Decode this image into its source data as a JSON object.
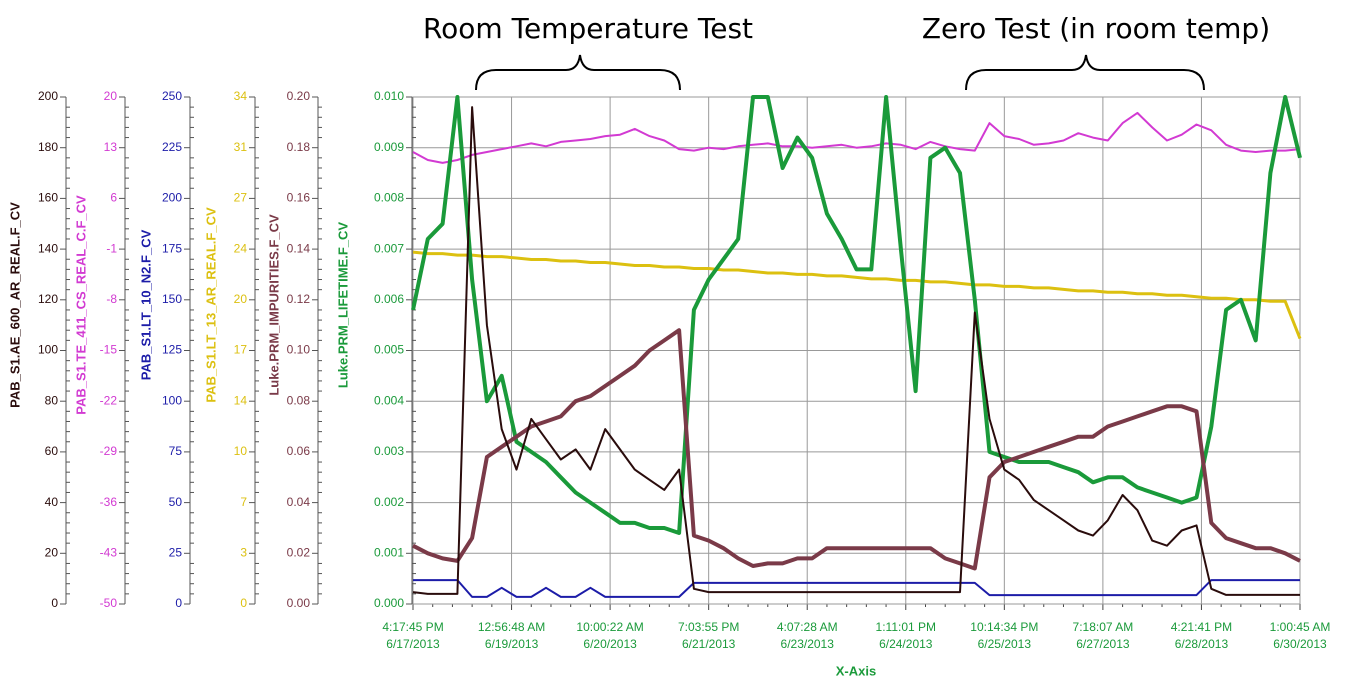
{
  "chart_data": {
    "type": "line",
    "annotations": [
      "Room Temperature Test",
      "Zero Test (in room temp)"
    ],
    "x_label": "X-Axis",
    "grid": true,
    "xticks": [
      [
        "4:17:45 PM",
        "6/17/2013"
      ],
      [
        "12:56:48 AM",
        "6/19/2013"
      ],
      [
        "10:00:22 AM",
        "6/20/2013"
      ],
      [
        "7:03:55 PM",
        "6/21/2013"
      ],
      [
        "4:07:28 AM",
        "6/23/2013"
      ],
      [
        "1:11:01 PM",
        "6/24/2013"
      ],
      [
        "10:14:34 PM",
        "6/25/2013"
      ],
      [
        "7:18:07 AM",
        "6/27/2013"
      ],
      [
        "4:21:41 PM",
        "6/28/2013"
      ],
      [
        "1:00:45 AM",
        "6/30/2013"
      ]
    ],
    "yaxes": [
      {
        "label": "PAB_S1.AE_600_AR_REAL.F_CV",
        "color": "#2a0c0c",
        "ylim": [
          0,
          200
        ],
        "yticks": [
          0,
          20,
          40,
          60,
          80,
          100,
          120,
          140,
          160,
          180,
          200
        ]
      },
      {
        "label": "PAB_S1.TE_411_CS_REAL_C.F_CV",
        "color": "#d23ad2",
        "ylim": [
          -50,
          20
        ],
        "yticks": [
          -50,
          -43,
          -36,
          -29,
          -22,
          -15,
          -8,
          -1,
          6,
          13,
          20
        ]
      },
      {
        "label": "PAB_S1.LT_10_N2.F_CV",
        "color": "#1c1ca8",
        "ylim": [
          0,
          250
        ],
        "yticks": [
          0,
          25,
          50,
          75,
          100,
          125,
          150,
          175,
          200,
          225,
          250
        ]
      },
      {
        "label": "PAB_S1.LT_13_AR_REAL.F_CV",
        "color": "#dcc010",
        "ylim": [
          0,
          34
        ],
        "yticks": [
          0,
          {
            "value": 3.4,
            "label": "3"
          },
          {
            "value": 6.8,
            "label": "7"
          },
          {
            "value": 10.2,
            "label": "10"
          },
          {
            "value": 13.6,
            "label": "14"
          },
          17,
          {
            "value": 20.4,
            "label": "20"
          },
          {
            "value": 23.8,
            "label": "24"
          },
          {
            "value": 27.2,
            "label": "27"
          },
          {
            "value": 30.6,
            "label": "31"
          },
          34
        ]
      },
      {
        "label": "Luke.PRM_IMPURITIES.F_CV",
        "color": "#7a3a48",
        "ylim": [
          0,
          0.2
        ],
        "yticks": [
          {
            "value": 0,
            "label": "0.00"
          },
          {
            "value": 0.02,
            "label": "0.02"
          },
          {
            "value": 0.04,
            "label": "0.04"
          },
          {
            "value": 0.06,
            "label": "0.06"
          },
          {
            "value": 0.08,
            "label": "0.08"
          },
          {
            "value": 0.1,
            "label": "0.10"
          },
          {
            "value": 0.12,
            "label": "0.12"
          },
          {
            "value": 0.14,
            "label": "0.14"
          },
          {
            "value": 0.16,
            "label": "0.16"
          },
          {
            "value": 0.18,
            "label": "0.18"
          },
          {
            "value": 0.2,
            "label": "0.20"
          }
        ]
      },
      {
        "label": "Luke.PRM_LIFETIME.F_CV",
        "color": "#1a9a3a",
        "ylim": [
          0,
          0.01
        ],
        "yticks": [
          {
            "value": 0,
            "label": "0.000"
          },
          {
            "value": 0.001,
            "label": "0.001"
          },
          {
            "value": 0.002,
            "label": "0.002"
          },
          {
            "value": 0.003,
            "label": "0.003"
          },
          {
            "value": 0.004,
            "label": "0.004"
          },
          {
            "value": 0.005,
            "label": "0.005"
          },
          {
            "value": 0.006,
            "label": "0.006"
          },
          {
            "value": 0.007,
            "label": "0.007"
          },
          {
            "value": 0.008,
            "label": "0.008"
          },
          {
            "value": 0.009,
            "label": "0.009"
          },
          {
            "value": 0.01,
            "label": "0.010"
          }
        ]
      }
    ],
    "series": [
      {
        "axis": 3,
        "values": [
          23.6,
          23.5,
          23.5,
          23.4,
          23.4,
          23.3,
          23.3,
          23.2,
          23.1,
          23.1,
          23.0,
          23.0,
          22.9,
          22.9,
          22.8,
          22.7,
          22.7,
          22.6,
          22.6,
          22.5,
          22.5,
          22.4,
          22.4,
          22.3,
          22.2,
          22.2,
          22.1,
          22.1,
          22.0,
          22.0,
          21.9,
          21.8,
          21.8,
          21.7,
          21.7,
          21.6,
          21.6,
          21.5,
          21.4,
          21.4,
          21.3,
          21.3,
          21.2,
          21.2,
          21.1,
          21.0,
          21.0,
          20.9,
          20.9,
          20.8,
          20.8,
          20.7,
          20.7,
          20.6,
          20.5,
          20.5,
          20.4,
          20.4,
          20.3,
          20.3,
          17.8
        ]
      },
      {
        "axis": 1,
        "values": [
          12.4,
          11.3,
          10.9,
          11.3,
          12.0,
          12.4,
          12.8,
          13.2,
          13.6,
          13.2,
          13.8,
          14.0,
          14.2,
          14.6,
          14.8,
          15.6,
          14.6,
          14.0,
          12.8,
          12.6,
          13.0,
          12.8,
          13.2,
          13.4,
          13.6,
          13.2,
          13.2,
          13.0,
          13.2,
          13.4,
          13.0,
          13.2,
          13.6,
          13.4,
          12.8,
          13.8,
          13.2,
          12.8,
          12.6,
          16.4,
          14.6,
          14.2,
          13.4,
          13.6,
          14.0,
          15.0,
          14.4,
          14.0,
          16.4,
          17.8,
          15.8,
          14.0,
          14.8,
          16.2,
          15.4,
          13.4,
          12.6,
          12.4,
          12.6,
          12.6,
          12.8
        ]
      },
      {
        "axis": 5,
        "values": [
          0.0058,
          0.0072,
          0.0075,
          0.01,
          0.0064,
          0.004,
          0.0045,
          0.0032,
          0.003,
          0.0028,
          0.0025,
          0.0022,
          0.002,
          0.0018,
          0.0016,
          0.0016,
          0.0015,
          0.0015,
          0.0014,
          0.0058,
          0.0064,
          0.0068,
          0.0072,
          0.01,
          0.01,
          0.0086,
          0.0092,
          0.0088,
          0.0077,
          0.0072,
          0.0066,
          0.0066,
          0.01,
          0.007,
          0.0042,
          0.0088,
          0.009,
          0.0085,
          0.006,
          0.003,
          0.0029,
          0.0028,
          0.0028,
          0.0028,
          0.0027,
          0.0026,
          0.0024,
          0.0025,
          0.0025,
          0.0023,
          0.0022,
          0.0021,
          0.002,
          0.0021,
          0.0035,
          0.0058,
          0.006,
          0.0052,
          0.0085,
          0.01,
          0.0088
        ]
      },
      {
        "axis": 4,
        "values": [
          0.023,
          0.02,
          0.018,
          0.017,
          0.026,
          0.058,
          0.062,
          0.066,
          0.07,
          0.072,
          0.074,
          0.08,
          0.082,
          0.086,
          0.09,
          0.094,
          0.1,
          0.104,
          0.108,
          0.027,
          0.025,
          0.022,
          0.018,
          0.015,
          0.016,
          0.016,
          0.018,
          0.018,
          0.022,
          0.022,
          0.022,
          0.022,
          0.022,
          0.022,
          0.022,
          0.022,
          0.018,
          0.016,
          0.014,
          0.05,
          0.056,
          0.058,
          0.06,
          0.062,
          0.064,
          0.066,
          0.066,
          0.07,
          0.072,
          0.074,
          0.076,
          0.078,
          0.078,
          0.076,
          0.032,
          0.026,
          0.024,
          0.022,
          0.022,
          0.02,
          0.017
        ]
      },
      {
        "axis": 2,
        "values": [
          11.8,
          11.8,
          11.8,
          11.8,
          3.5,
          3.5,
          8,
          3.5,
          3.5,
          8,
          3.5,
          3.5,
          8,
          3.5,
          3.5,
          3.5,
          3.5,
          3.5,
          3.5,
          10.4,
          10.4,
          10.4,
          10.4,
          10.4,
          10.4,
          10.4,
          10.4,
          10.4,
          10.4,
          10.4,
          10.4,
          10.4,
          10.4,
          10.4,
          10.4,
          10.4,
          10.4,
          10.4,
          10.4,
          4.4,
          4.4,
          4.4,
          4.4,
          4.4,
          4.4,
          4.4,
          4.4,
          4.4,
          4.4,
          4.4,
          4.4,
          4.4,
          4.4,
          4.4,
          11.8,
          11.8,
          11.8,
          11.8,
          11.8,
          11.8,
          11.8
        ]
      },
      {
        "axis": 0,
        "values": [
          4.7,
          4,
          4,
          4,
          196,
          110,
          69,
          53,
          73,
          65,
          57,
          61,
          53,
          69,
          61,
          53,
          49,
          45,
          53,
          6,
          4.7,
          4.7,
          4.7,
          4.7,
          4.7,
          4.7,
          4.7,
          4.7,
          4.7,
          4.7,
          4.7,
          4.7,
          4.7,
          4.7,
          4.7,
          4.7,
          4.7,
          4.7,
          115,
          73,
          53,
          49,
          41,
          37,
          33,
          29,
          27,
          33,
          43,
          37,
          25,
          23,
          29,
          31,
          6,
          3.6,
          3.6,
          3.6,
          3.6,
          3.6,
          3.6
        ]
      }
    ]
  }
}
